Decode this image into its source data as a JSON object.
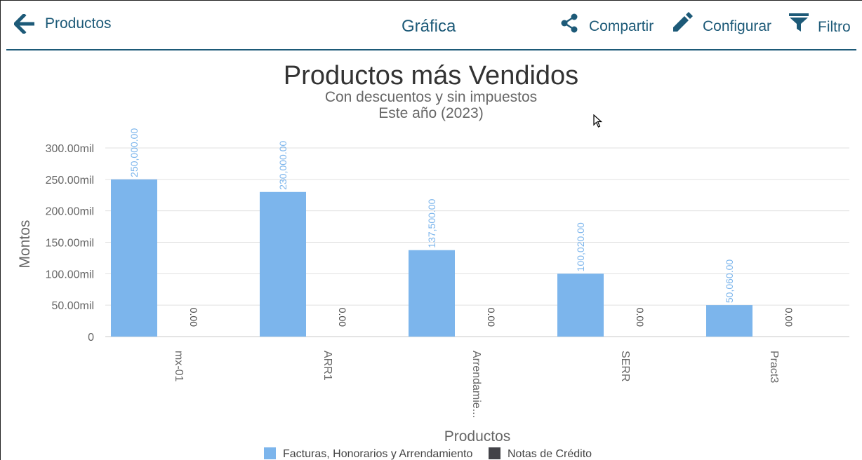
{
  "header": {
    "back_label": "Productos",
    "title": "Gráfica",
    "share_label": "Compartir",
    "configure_label": "Configurar",
    "filter_label": "Filtro",
    "icons": [
      "arrow-left-icon",
      "share-icon",
      "pencil-icon",
      "filter-icon"
    ],
    "accent_color": "#1d5a78"
  },
  "chart_data": {
    "type": "bar",
    "title": "Productos más Vendidos",
    "subtitle_lines": [
      "Con descuentos y sin impuestos",
      "Este año (2023)"
    ],
    "xlabel": "Productos",
    "ylabel": "Montos",
    "categories": [
      "mx-01",
      "ARR1",
      "Arrendamie...",
      "SERR",
      "Pract3"
    ],
    "series": [
      {
        "name": "Facturas, Honorarios y Arrendamiento",
        "color": "#7cb5ec",
        "values": [
          250000,
          230000,
          137500,
          100020,
          50060
        ],
        "labels": [
          "250,000.00",
          "230,000.00",
          "137,500.00",
          "100,020.00",
          "50,060.00"
        ]
      },
      {
        "name": "Notas de Crédito",
        "color": "#434348",
        "values": [
          0,
          0,
          0,
          0,
          0
        ],
        "labels": [
          "0.00",
          "0.00",
          "0.00",
          "0.00",
          "0.00"
        ]
      }
    ],
    "yticks": [
      0,
      50000,
      100000,
      150000,
      200000,
      250000,
      300000
    ],
    "ytick_labels": [
      "0",
      "50.00mil",
      "100.00mil",
      "150.00mil",
      "200.00mil",
      "250.00mil",
      "300.00mil"
    ],
    "ylim": [
      0,
      300000
    ],
    "grid": true,
    "legend_position": "bottom-center"
  }
}
